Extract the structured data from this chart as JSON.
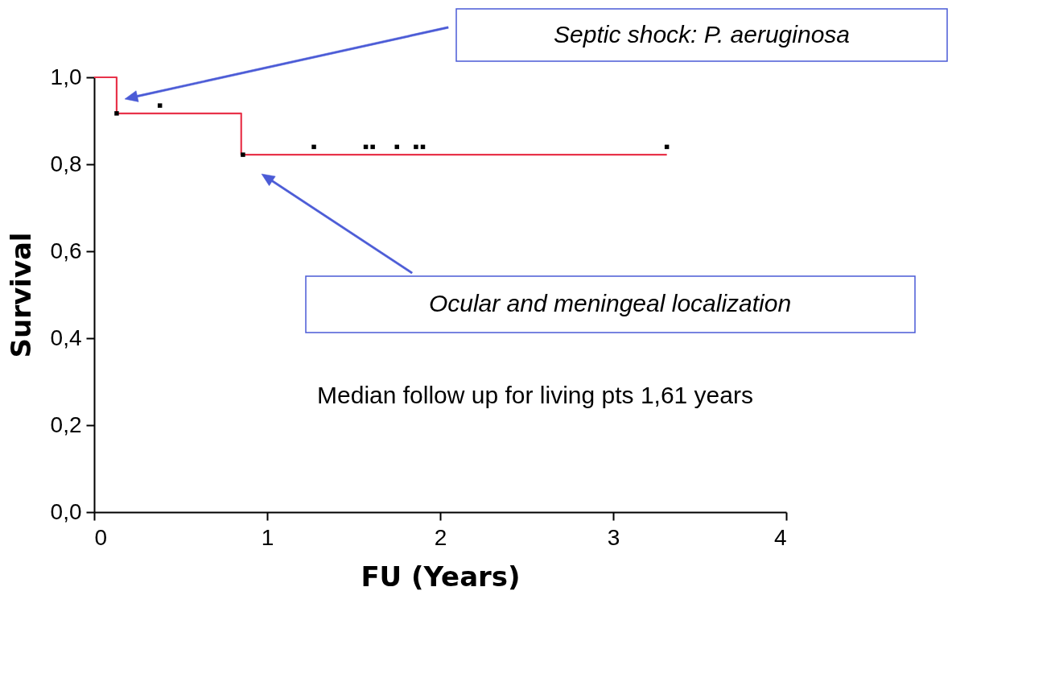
{
  "chart_data": {
    "type": "step",
    "xlabel": "FU (Years)",
    "ylabel": "Survival",
    "xlim": [
      0,
      4
    ],
    "ylim": [
      0,
      1
    ],
    "xticks": [
      0,
      1,
      2,
      3,
      4
    ],
    "yticks": [
      {
        "value": 0,
        "label": "0,0"
      },
      {
        "value": 0.2,
        "label": "0,2"
      },
      {
        "value": 0.4,
        "label": "0,4"
      },
      {
        "value": 0.6,
        "label": "0,6"
      },
      {
        "value": 0.8,
        "label": "0,8"
      },
      {
        "value": 1,
        "label": "1,0"
      }
    ],
    "grid": false,
    "series": [
      {
        "color": "#e8334a",
        "line_style": "solid",
        "x": [
          0,
          0.13,
          0.85,
          3.31
        ],
        "values": [
          1.0,
          0.917,
          0.822,
          0.822
        ],
        "marker": "none"
      },
      {
        "type": "scatter",
        "color": "#000000",
        "marker": "square",
        "x": [
          0.13,
          0.38,
          0.86,
          1.27,
          1.57,
          1.61,
          1.75,
          1.86,
          1.9,
          3.31
        ],
        "values": [
          0.917,
          0.935,
          0.822,
          0.84,
          0.84,
          0.84,
          0.84,
          0.84,
          0.84,
          0.84
        ]
      }
    ],
    "annotations": [
      "Septic shock: P. aeruginosa",
      "Ocular and meningeal localization",
      "Median follow up for living pts 1,61 years"
    ]
  }
}
